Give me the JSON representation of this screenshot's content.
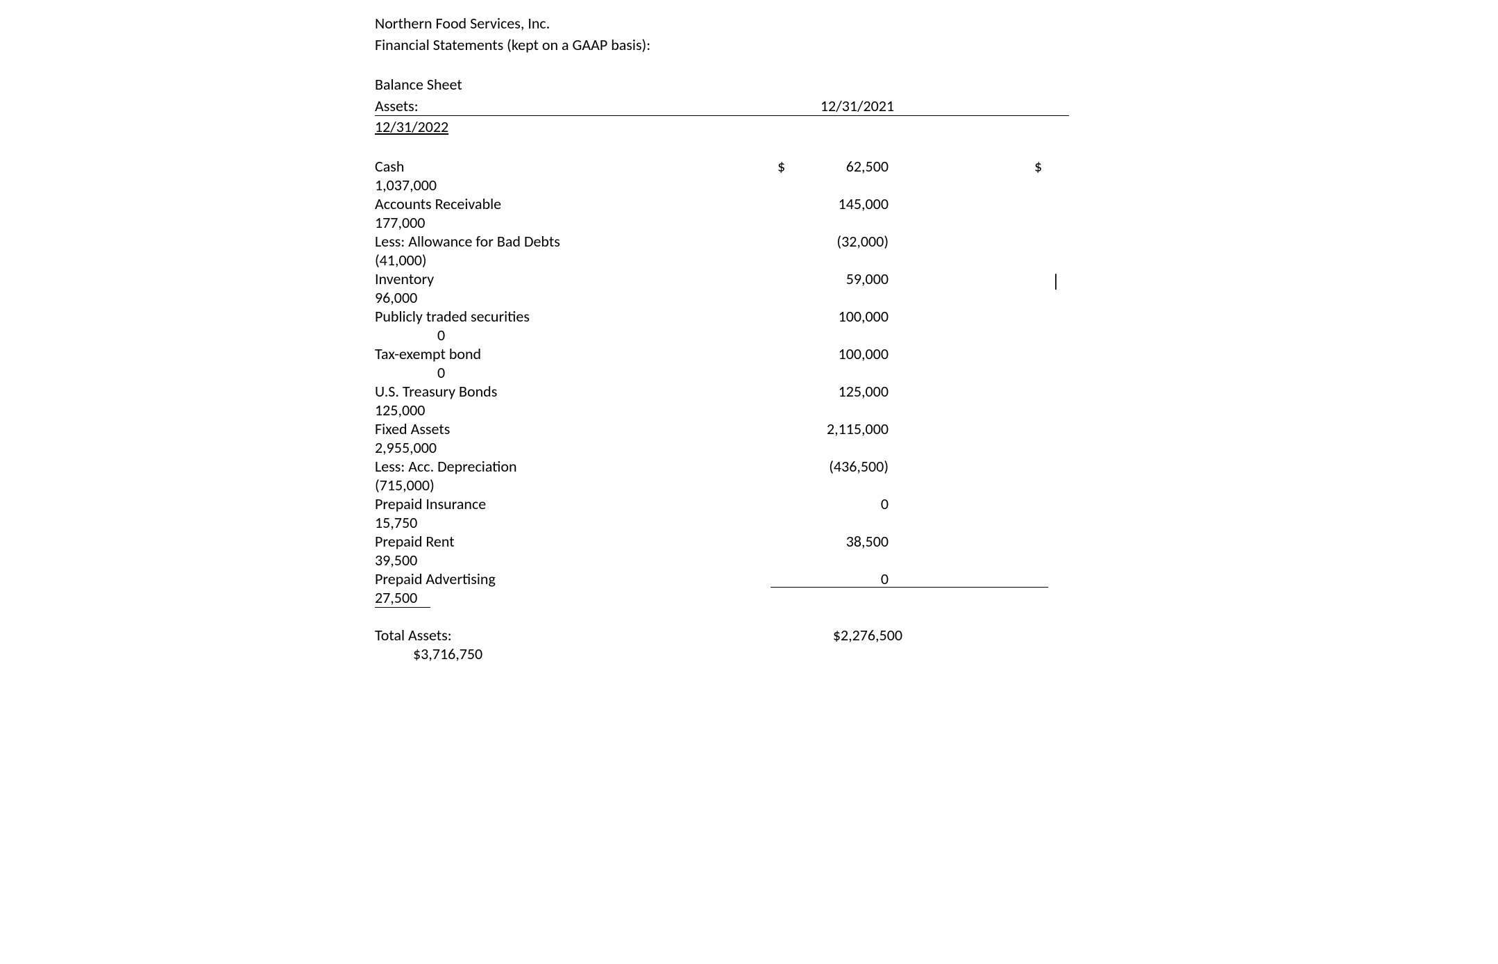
{
  "header": {
    "company": "Northern Food Services, Inc.",
    "subtitle": "Financial Statements (kept on a GAAP basis):",
    "statement": "Balance Sheet",
    "section": "Assets:",
    "date1": "12/31/2021",
    "date2": "12/31/2022"
  },
  "rows": [
    {
      "label": "Cash",
      "sym": "$",
      "v1": "62,500",
      "sym2": "$",
      "v2": "1,037,000"
    },
    {
      "label": "Accounts Receivable",
      "sym": "",
      "v1": "145,000",
      "sym2": "",
      "v2": "177,000"
    },
    {
      "label": "Less:  Allowance for Bad Debts",
      "sym": "",
      "v1": "(32,000)",
      "sym2": "",
      "v2": "(41,000)"
    },
    {
      "label": "Inventory",
      "sym": "",
      "v1": "59,000",
      "sym2": "",
      "v2": "96,000",
      "cursor": true
    },
    {
      "label": "Publicly traded securities",
      "sym": "",
      "v1": "100,000",
      "sym2": "",
      "v2": "0",
      "indent": true
    },
    {
      "label": "Tax-exempt bond",
      "sym": "",
      "v1": "100,000",
      "sym2": "",
      "v2": "0",
      "indent": true
    },
    {
      "label": "U.S. Treasury Bonds",
      "sym": "",
      "v1": "125,000",
      "sym2": "",
      "v2": "125,000"
    },
    {
      "label": "Fixed Assets",
      "sym": "",
      "v1": "2,115,000",
      "sym2": "",
      "v2": "2,955,000"
    },
    {
      "label": "Less:  Acc. Depreciation",
      "sym": "",
      "v1": "(436,500)",
      "sym2": "",
      "v2": "(715,000)"
    },
    {
      "label": "Prepaid Insurance",
      "sym": "",
      "v1": "0",
      "sym2": "",
      "v2": "15,750"
    },
    {
      "label": "Prepaid Rent",
      "sym": "",
      "v1": "38,500",
      "sym2": "",
      "v2": "39,500"
    },
    {
      "label": "Prepaid Advertising",
      "sym": "",
      "v1": "0",
      "sym2": "",
      "v2": "27,500",
      "underline": true,
      "underlineV2": true
    }
  ],
  "totals": {
    "label": "Total Assets:",
    "v1": "$2,276,500",
    "v2": "$3,716,750"
  },
  "style": {
    "font": "Calibri",
    "fontsize": 22,
    "text_color": "#000000",
    "background": "#ffffff"
  }
}
